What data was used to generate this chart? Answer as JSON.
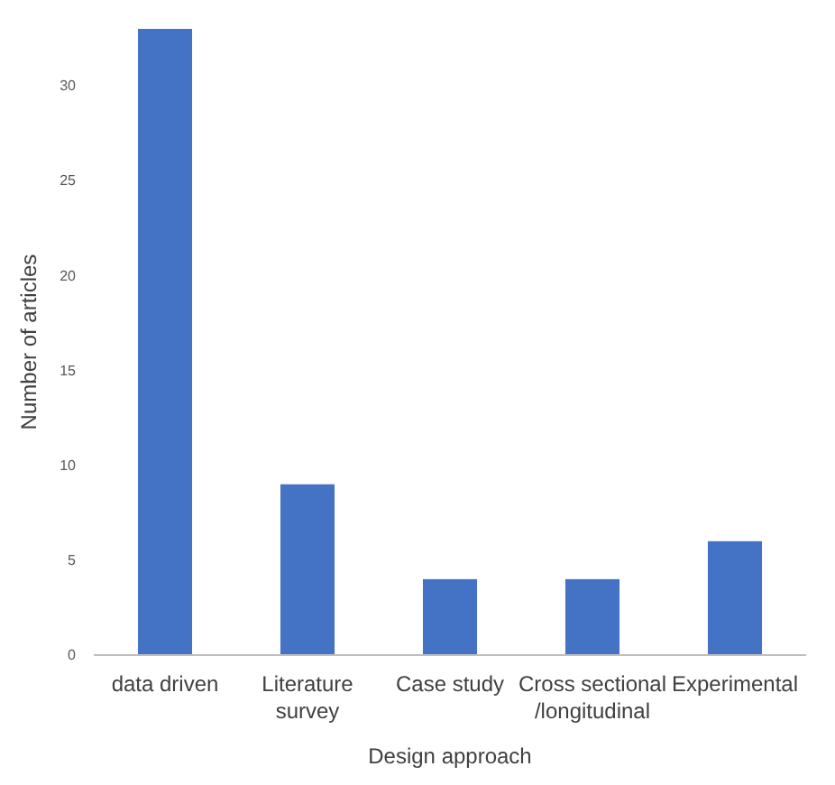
{
  "chart_data": {
    "type": "bar",
    "xlabel": "Design approach",
    "ylabel": "Number of articles",
    "categories": [
      "data driven",
      "Literature survey",
      "Case study",
      "Cross sectional /longitudinal",
      "Experimental"
    ],
    "values": [
      33,
      9,
      4,
      4,
      6
    ],
    "color": "#4472c4",
    "ylim": [
      0,
      33
    ],
    "yticks": [
      0,
      5,
      10,
      15,
      20,
      25,
      30
    ],
    "grid": false
  }
}
